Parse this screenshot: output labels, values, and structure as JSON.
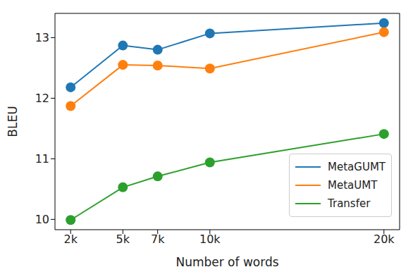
{
  "chart_data": {
    "type": "line",
    "xlabel": "Number of words",
    "ylabel": "BLEU",
    "x": [
      2000,
      5000,
      7000,
      10000,
      20000
    ],
    "xlim": [
      1100,
      20900
    ],
    "xticks": [
      {
        "value": 2000,
        "label": "2k"
      },
      {
        "value": 5000,
        "label": "5k"
      },
      {
        "value": 7000,
        "label": "7k"
      },
      {
        "value": 10000,
        "label": "10k"
      },
      {
        "value": 20000,
        "label": "20k"
      }
    ],
    "ylim": [
      9.83,
      13.4
    ],
    "yticks": [
      10,
      11,
      12,
      13
    ],
    "grid": false,
    "legend": "lower right",
    "marker": "o",
    "line_style": "solid",
    "series": [
      {
        "name": "MetaGUMT",
        "color": "#1f77b4",
        "values": [
          12.18,
          12.87,
          12.8,
          13.07,
          13.24
        ]
      },
      {
        "name": "MetaUMT",
        "color": "#ff7f0e",
        "values": [
          11.87,
          12.55,
          12.54,
          12.49,
          13.09
        ]
      },
      {
        "name": "Transfer",
        "color": "#2ca02c",
        "values": [
          9.99,
          10.53,
          10.71,
          10.94,
          11.41
        ]
      }
    ]
  }
}
